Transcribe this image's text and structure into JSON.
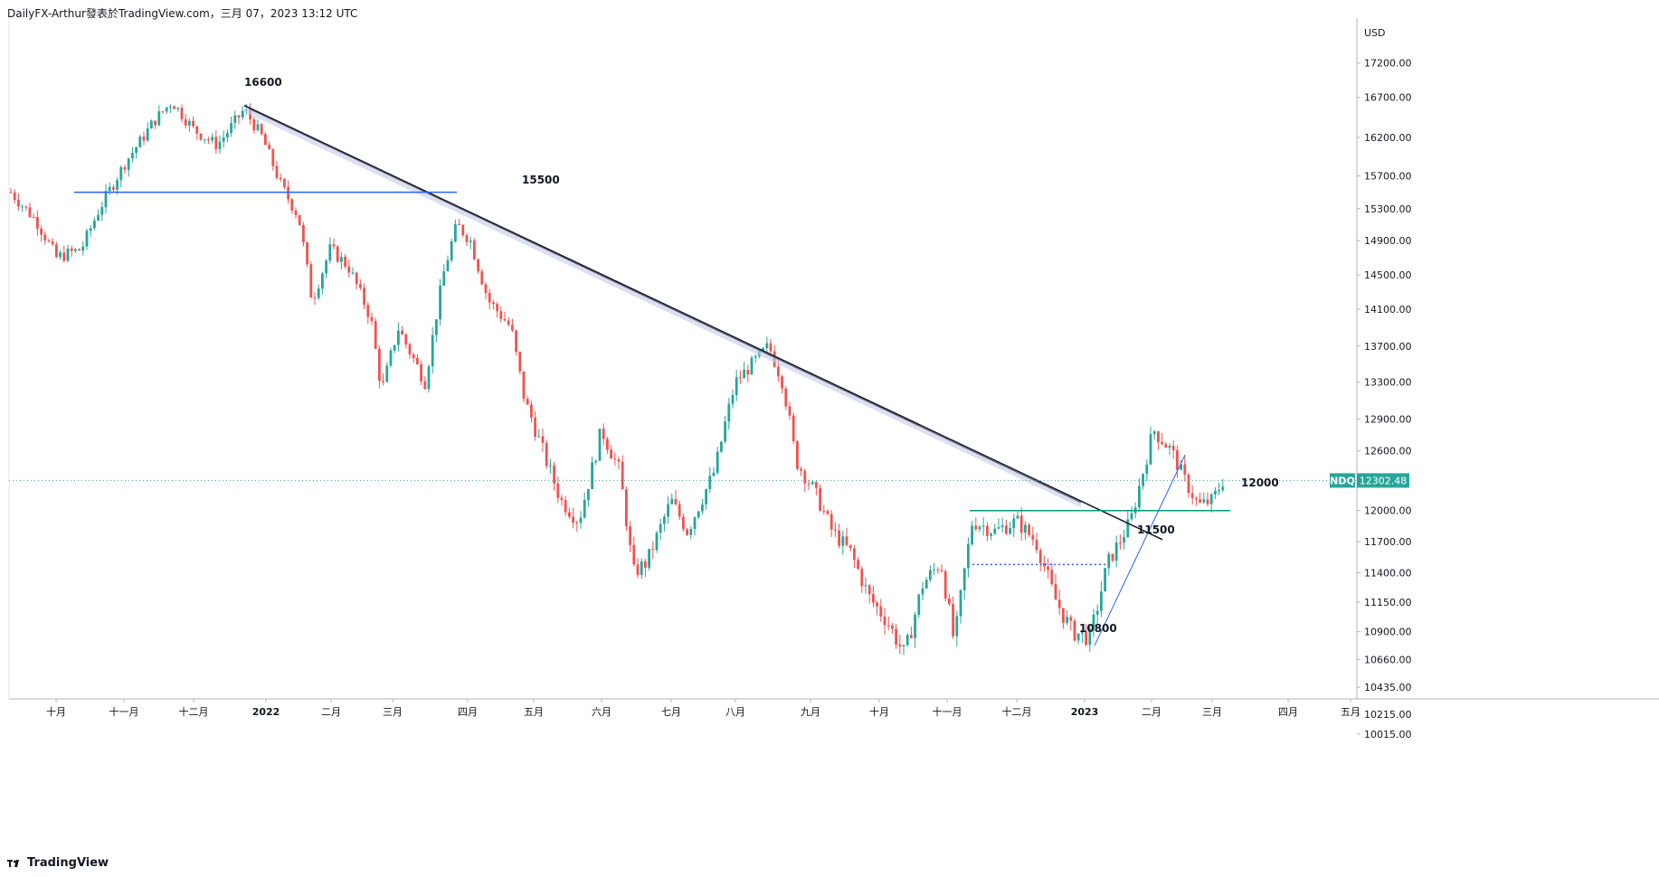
{
  "header": {
    "text": "DailyFX-Arthur發表於TradingView.com，三月 07，2023 13:12 UTC"
  },
  "footer": {
    "brand": "TradingView",
    "logo_icon": "tradingview-logo-icon"
  },
  "colors": {
    "up": "#26a69a",
    "down": "#ef5350",
    "resistance_blue": "#2962ff",
    "support_teal": "#089981",
    "trendline": "#131722",
    "channel": "#c5cae9",
    "price_tag": "#26a69a"
  },
  "chart_data": {
    "type": "candlestick",
    "symbol": "NDQ",
    "currency": "USD",
    "last_price": "12302.48",
    "y_ticks": [
      "17200.00",
      "16700.00",
      "16200.00",
      "15700.00",
      "15300.00",
      "14900.00",
      "14500.00",
      "14100.00",
      "13700.00",
      "13300.00",
      "12900.00",
      "12600.00",
      "12000.00",
      "11700.00",
      "11400.00",
      "11150.00",
      "10900.00",
      "10660.00",
      "10435.00",
      "10215.00",
      "10015.00"
    ],
    "x_ticks": [
      "十月",
      "十一月",
      "十二月",
      "2022",
      "二月",
      "三月",
      "四月",
      "五月",
      "六月",
      "七月",
      "八月",
      "九月",
      "十月",
      "十一月",
      "十二月",
      "2023",
      "二月",
      "三月",
      "四月",
      "五月"
    ],
    "annotations": [
      {
        "label": "16600"
      },
      {
        "label": "15500"
      },
      {
        "label": "12000"
      },
      {
        "label": "11500"
      },
      {
        "label": "10800"
      }
    ]
  }
}
